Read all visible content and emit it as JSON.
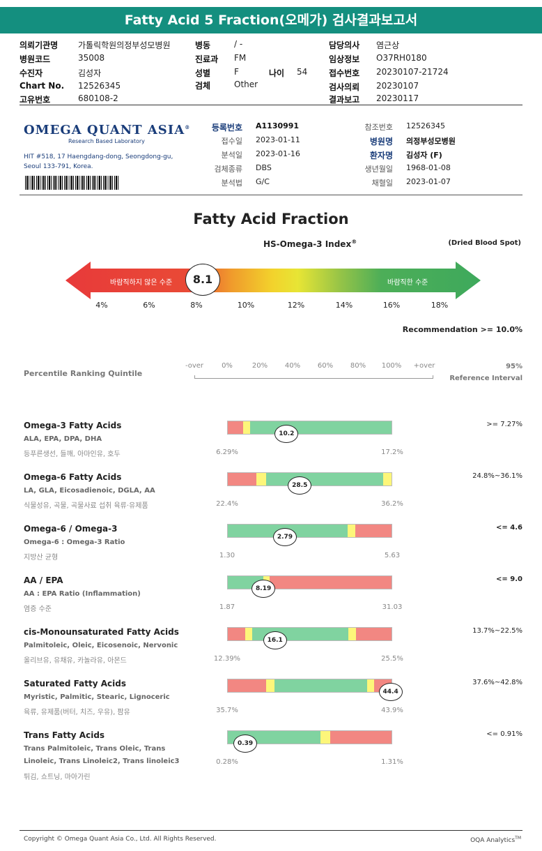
{
  "report_title": "Fatty Acid 5 Fraction(오메가) 검사결과보고서",
  "header_fields": [
    {
      "label": "의뢰기관명",
      "value": "가톨릭학원의정부성모병원"
    },
    {
      "label": "병원코드",
      "value": "35008"
    },
    {
      "label": "수진자",
      "value": "김성자"
    },
    {
      "label": "Chart No.",
      "value": "12526345"
    },
    {
      "label": "고유번호",
      "value": "680108-2"
    },
    {
      "label": "병동",
      "value": "/ -"
    },
    {
      "label": "진료과",
      "value": "FM"
    },
    {
      "label": "성별",
      "value": "F"
    },
    {
      "label": "검체",
      "value": "Other"
    },
    {
      "label": "나이",
      "value": "54"
    },
    {
      "label": "담당의사",
      "value": "염근상"
    },
    {
      "label": "임상정보",
      "value": "O37RH0180"
    },
    {
      "label": "접수번호",
      "value": "20230107-21724"
    },
    {
      "label": "검사의뢰",
      "value": "20230107"
    },
    {
      "label": "결과보고",
      "value": "20230117"
    }
  ],
  "lab": {
    "name": "OMEGA QUANT ASIA",
    "registered": "®",
    "tagline": "Research Based Laboratory",
    "address_line1": "HIT #518, 17 Haengdang-dong, Seongdong-gu,",
    "address_line2": "Seoul 133-791, Korea."
  },
  "specimen_info": [
    {
      "label": "등록번호",
      "value": "A1130991"
    },
    {
      "label": "접수일",
      "value": "2023-01-11"
    },
    {
      "label": "분석일",
      "value": "2023-01-16"
    },
    {
      "label": "검체종류",
      "value": "DBS"
    },
    {
      "label": "분석법",
      "value": "G/C"
    },
    {
      "label": "참조번호",
      "value": "12526345"
    },
    {
      "label": "병원명",
      "value": "의정부성모병원"
    },
    {
      "label": "환자명",
      "value": "김성자 (F)"
    },
    {
      "label": "생년월일",
      "value": "1968-01-08"
    },
    {
      "label": "채혈일",
      "value": "2023-01-07"
    }
  ],
  "index": {
    "main_title": "Fatty Acid Fraction",
    "subtitle": "HS-Omega-3 Index",
    "subtitle_sup": "®",
    "sample_note": "(Dried Blood Spot)",
    "undesirable_label": "바람직하지 않은 수준",
    "desirable_label": "바람직한 수준",
    "value": "8.1",
    "value_num": 8.1,
    "scale": [
      "4%",
      "6%",
      "8%",
      "10%",
      "12%",
      "14%",
      "16%",
      "18%"
    ],
    "recommendation": "Recommendation  >= 10.0%"
  },
  "percentile": {
    "label": "Percentile Ranking Quintile",
    "ticks": [
      "-over",
      "0%",
      "20%",
      "40%",
      "60%",
      "80%",
      "100%",
      "+over"
    ],
    "ref_header_1": "95%",
    "ref_header_2": "Reference Interval"
  },
  "sections": [
    {
      "title": "Omega-3 Fatty Acids",
      "sub": "ALA, EPA, DPA, DHA",
      "desc": "등푸른생선, 들깨, 아마인유, 호두",
      "value": "10.2",
      "value_pos": 0.36,
      "min": "6.29%",
      "max": "17.2%",
      "reference": ">= 7.27%",
      "segments": [
        {
          "color": "#f28782",
          "from": 0,
          "to": 0.095
        },
        {
          "color": "#fdf67a",
          "from": 0.095,
          "to": 0.135
        },
        {
          "color": "#80d3a0",
          "from": 0.135,
          "to": 1
        }
      ]
    },
    {
      "title": "Omega-6 Fatty Acids",
      "sub": "LA, GLA, Eicosadienoic, DGLA, AA",
      "desc": "식물성유, 곡물, 곡물사료 섭취 육류·유제품",
      "value": "28.5",
      "value_pos": 0.44,
      "min": "22.4%",
      "max": "36.2%",
      "reference": "24.8%~36.1%",
      "segments": [
        {
          "color": "#f28782",
          "from": 0,
          "to": 0.175
        },
        {
          "color": "#fdf67a",
          "from": 0.175,
          "to": 0.235
        },
        {
          "color": "#80d3a0",
          "from": 0.235,
          "to": 0.95
        },
        {
          "color": "#fdf67a",
          "from": 0.95,
          "to": 1
        }
      ]
    },
    {
      "title": "Omega-6 / Omega-3",
      "sub": "Omega-6 : Omega-3 Ratio",
      "desc": "지방산 균형",
      "value": "2.79",
      "value_pos": 0.35,
      "min": "1.30",
      "max": "5.63",
      "reference": "<= 4.6",
      "ref_bold": true,
      "segments": [
        {
          "color": "#80d3a0",
          "from": 0,
          "to": 0.73
        },
        {
          "color": "#fdf67a",
          "from": 0.73,
          "to": 0.78
        },
        {
          "color": "#f28782",
          "from": 0.78,
          "to": 1
        }
      ]
    },
    {
      "title": "AA / EPA",
      "sub": "AA : EPA Ratio (Inflammation)",
      "desc": "염증 수준",
      "value": "8.19",
      "value_pos": 0.22,
      "min": "1.87",
      "max": "31.03",
      "reference": "<= 9.0",
      "ref_bold": true,
      "segments": [
        {
          "color": "#80d3a0",
          "from": 0,
          "to": 0.215
        },
        {
          "color": "#fdf67a",
          "from": 0.215,
          "to": 0.255
        },
        {
          "color": "#f28782",
          "from": 0.255,
          "to": 1
        }
      ]
    },
    {
      "title": "cis-Monounsaturated Fatty Acids",
      "sub": "Palmitoleic, Oleic, Eicosenoic, Nervonic",
      "desc": "올리브유, 유채유, 카놀라유, 아몬드",
      "value": "16.1",
      "value_pos": 0.29,
      "min": "12.39%",
      "max": "25.5%",
      "reference": "13.7%~22.5%",
      "segments": [
        {
          "color": "#f28782",
          "from": 0,
          "to": 0.105
        },
        {
          "color": "#fdf67a",
          "from": 0.105,
          "to": 0.15
        },
        {
          "color": "#80d3a0",
          "from": 0.15,
          "to": 0.735
        },
        {
          "color": "#fdf67a",
          "from": 0.735,
          "to": 0.785
        },
        {
          "color": "#f28782",
          "from": 0.785,
          "to": 1
        }
      ]
    },
    {
      "title": "Saturated Fatty Acids",
      "sub": "Myristic, Palmitic, Stearic, Lignoceric",
      "desc": "육류, 유제품(버터, 치즈, 우유), 팜유",
      "value": "44.4",
      "value_pos": 0.99,
      "min": "35.7%",
      "max": "43.9%",
      "reference": "37.6%~42.8%",
      "segments": [
        {
          "color": "#f28782",
          "from": 0,
          "to": 0.235
        },
        {
          "color": "#fdf67a",
          "from": 0.235,
          "to": 0.285
        },
        {
          "color": "#80d3a0",
          "from": 0.285,
          "to": 0.85
        },
        {
          "color": "#fdf67a",
          "from": 0.85,
          "to": 0.895
        },
        {
          "color": "#f28782",
          "from": 0.895,
          "to": 1
        }
      ]
    },
    {
      "title": "Trans Fatty Acids",
      "sub": "Trans Palmitoleic, Trans Oleic, Trans",
      "sub2": "Linoleic, Trans Linoleic2, Trans linoleic3",
      "desc": "튀김, 쇼트닝, 마아가린",
      "value": "0.39",
      "value_pos": 0.11,
      "min": "0.28%",
      "max": "1.31%",
      "reference": "<= 0.91%",
      "segments": [
        {
          "color": "#80d3a0",
          "from": 0,
          "to": 0.565
        },
        {
          "color": "#fdf67a",
          "from": 0.565,
          "to": 0.625
        },
        {
          "color": "#f28782",
          "from": 0.625,
          "to": 1
        }
      ]
    }
  ],
  "footer": {
    "copyright": "Copyright © Omega Quant Asia Co., Ltd.  All Rights Reserved.",
    "brand": "OQA Analytics",
    "brand_sup": "TM"
  }
}
